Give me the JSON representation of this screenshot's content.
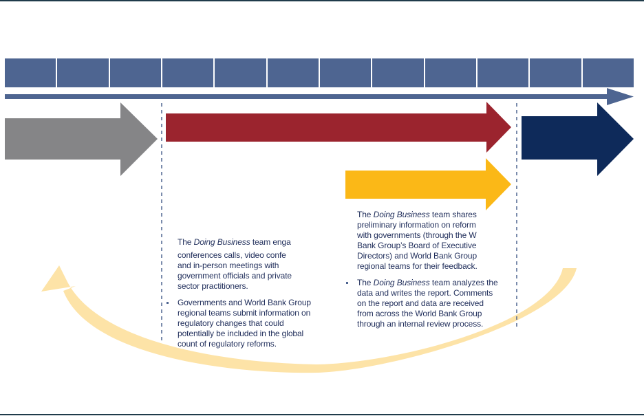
{
  "colors": {
    "timeline_blue": "#4e6591",
    "gray_arrow": "#858587",
    "red_arrow": "#9b242e",
    "yellow_arrow": "#fbb817",
    "navy_arrow": "#0e2a5a",
    "cycle_arrow": "#fde3a7",
    "dashed_line": "#4e6591",
    "text": "#1f2d5a"
  },
  "timeline": {
    "month_count": 12
  },
  "left_text": {
    "para1_prefix": "The ",
    "para1_italic": "Doing Business",
    "para1_line1_rest": " team enga",
    "para1_line2": "conferences calls, video confe",
    "para1_line3": "and in-person meetings with",
    "para1_line4": "government officials and private",
    "para1_line5": "sector practitioners.",
    "bullet_line1": "Governments and World Bank Group",
    "bullet_line2": "regional teams submit information on",
    "bullet_line3": "regulatory changes that could",
    "bullet_line4": "potentially be included in the global",
    "bullet_line5": "count of regulatory reforms."
  },
  "right_text": {
    "para1_prefix": "The ",
    "para1_italic": "Doing Business",
    "para1_line1_rest": " team shares",
    "para1_line2": "preliminary information on reform",
    "para1_line3": "with governments (through the W",
    "para1_line4": "Bank Group’s Board of Executive",
    "para1_line5": "Directors) and World Bank Group",
    "para1_line6": "regional teams for their feedback.",
    "bullet_prefix": "The ",
    "bullet_italic": "Doing Business",
    "bullet_line1_rest": " team analyzes the",
    "bullet_line2": "data and writes the report. Comments",
    "bullet_line3": "on the report and data are received",
    "bullet_line4": "from across the World Bank Group",
    "bullet_line5": "through an internal review process."
  }
}
